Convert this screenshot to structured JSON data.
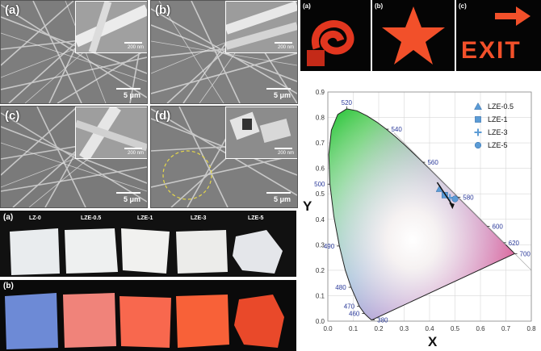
{
  "sem": {
    "panels": [
      {
        "label": "(a)",
        "scale": "5 μm",
        "inset_scale": "200 nm"
      },
      {
        "label": "(b)",
        "scale": "5 μm",
        "inset_scale": "200 nm"
      },
      {
        "label": "(c)",
        "scale": "5 μm",
        "inset_scale": "200 nm"
      },
      {
        "label": "(d)",
        "scale": "5 μm",
        "inset_scale": "200 nm"
      }
    ]
  },
  "membranes": {
    "row_a_label": "(a)",
    "row_b_label": "(b)",
    "samples": [
      "LZ-0",
      "LZE-0.5",
      "LZE-1",
      "LZE-3",
      "LZE-5"
    ]
  },
  "shapes": {
    "labels": [
      "(a)",
      "(b)",
      "(c)"
    ],
    "exit_text": "EXIT"
  },
  "chart_data": {
    "type": "scatter",
    "title": "",
    "xlabel": "X",
    "ylabel": "Y",
    "xlim": [
      0.0,
      0.8
    ],
    "ylim": [
      0.0,
      0.9
    ],
    "x_ticks": [
      "0.0",
      "0.1",
      "0.2",
      "0.3",
      "0.4",
      "0.5",
      "0.6",
      "0.7",
      "0.8"
    ],
    "y_ticks": [
      "0.0",
      "0.1",
      "0.2",
      "0.3",
      "0.4",
      "0.5",
      "0.6",
      "0.7",
      "0.8",
      "0.9"
    ],
    "grid": true,
    "legend_position": "top-right",
    "wavelength_labels": [
      {
        "text": "380",
        "x": 0.175,
        "y": 0.005
      },
      {
        "text": "460",
        "x": 0.144,
        "y": 0.03
      },
      {
        "text": "470",
        "x": 0.124,
        "y": 0.058
      },
      {
        "text": "480",
        "x": 0.091,
        "y": 0.133
      },
      {
        "text": "490",
        "x": 0.045,
        "y": 0.295
      },
      {
        "text": "500",
        "x": 0.008,
        "y": 0.538
      },
      {
        "text": "520",
        "x": 0.074,
        "y": 0.834
      },
      {
        "text": "540",
        "x": 0.23,
        "y": 0.754
      },
      {
        "text": "560",
        "x": 0.373,
        "y": 0.624
      },
      {
        "text": "580",
        "x": 0.512,
        "y": 0.487
      },
      {
        "text": "600",
        "x": 0.627,
        "y": 0.372
      },
      {
        "text": "620",
        "x": 0.691,
        "y": 0.308
      },
      {
        "text": "700",
        "x": 0.735,
        "y": 0.265
      }
    ],
    "series": [
      {
        "name": "LZE-0.5",
        "marker": "triangle",
        "x": 0.44,
        "y": 0.52
      },
      {
        "name": "LZE-1",
        "marker": "square",
        "x": 0.46,
        "y": 0.495
      },
      {
        "name": "LZE-3",
        "marker": "star",
        "x": 0.48,
        "y": 0.485
      },
      {
        "name": "LZE-5",
        "marker": "circle",
        "x": 0.5,
        "y": 0.48
      }
    ],
    "marker_color": "#5b9bd5"
  }
}
